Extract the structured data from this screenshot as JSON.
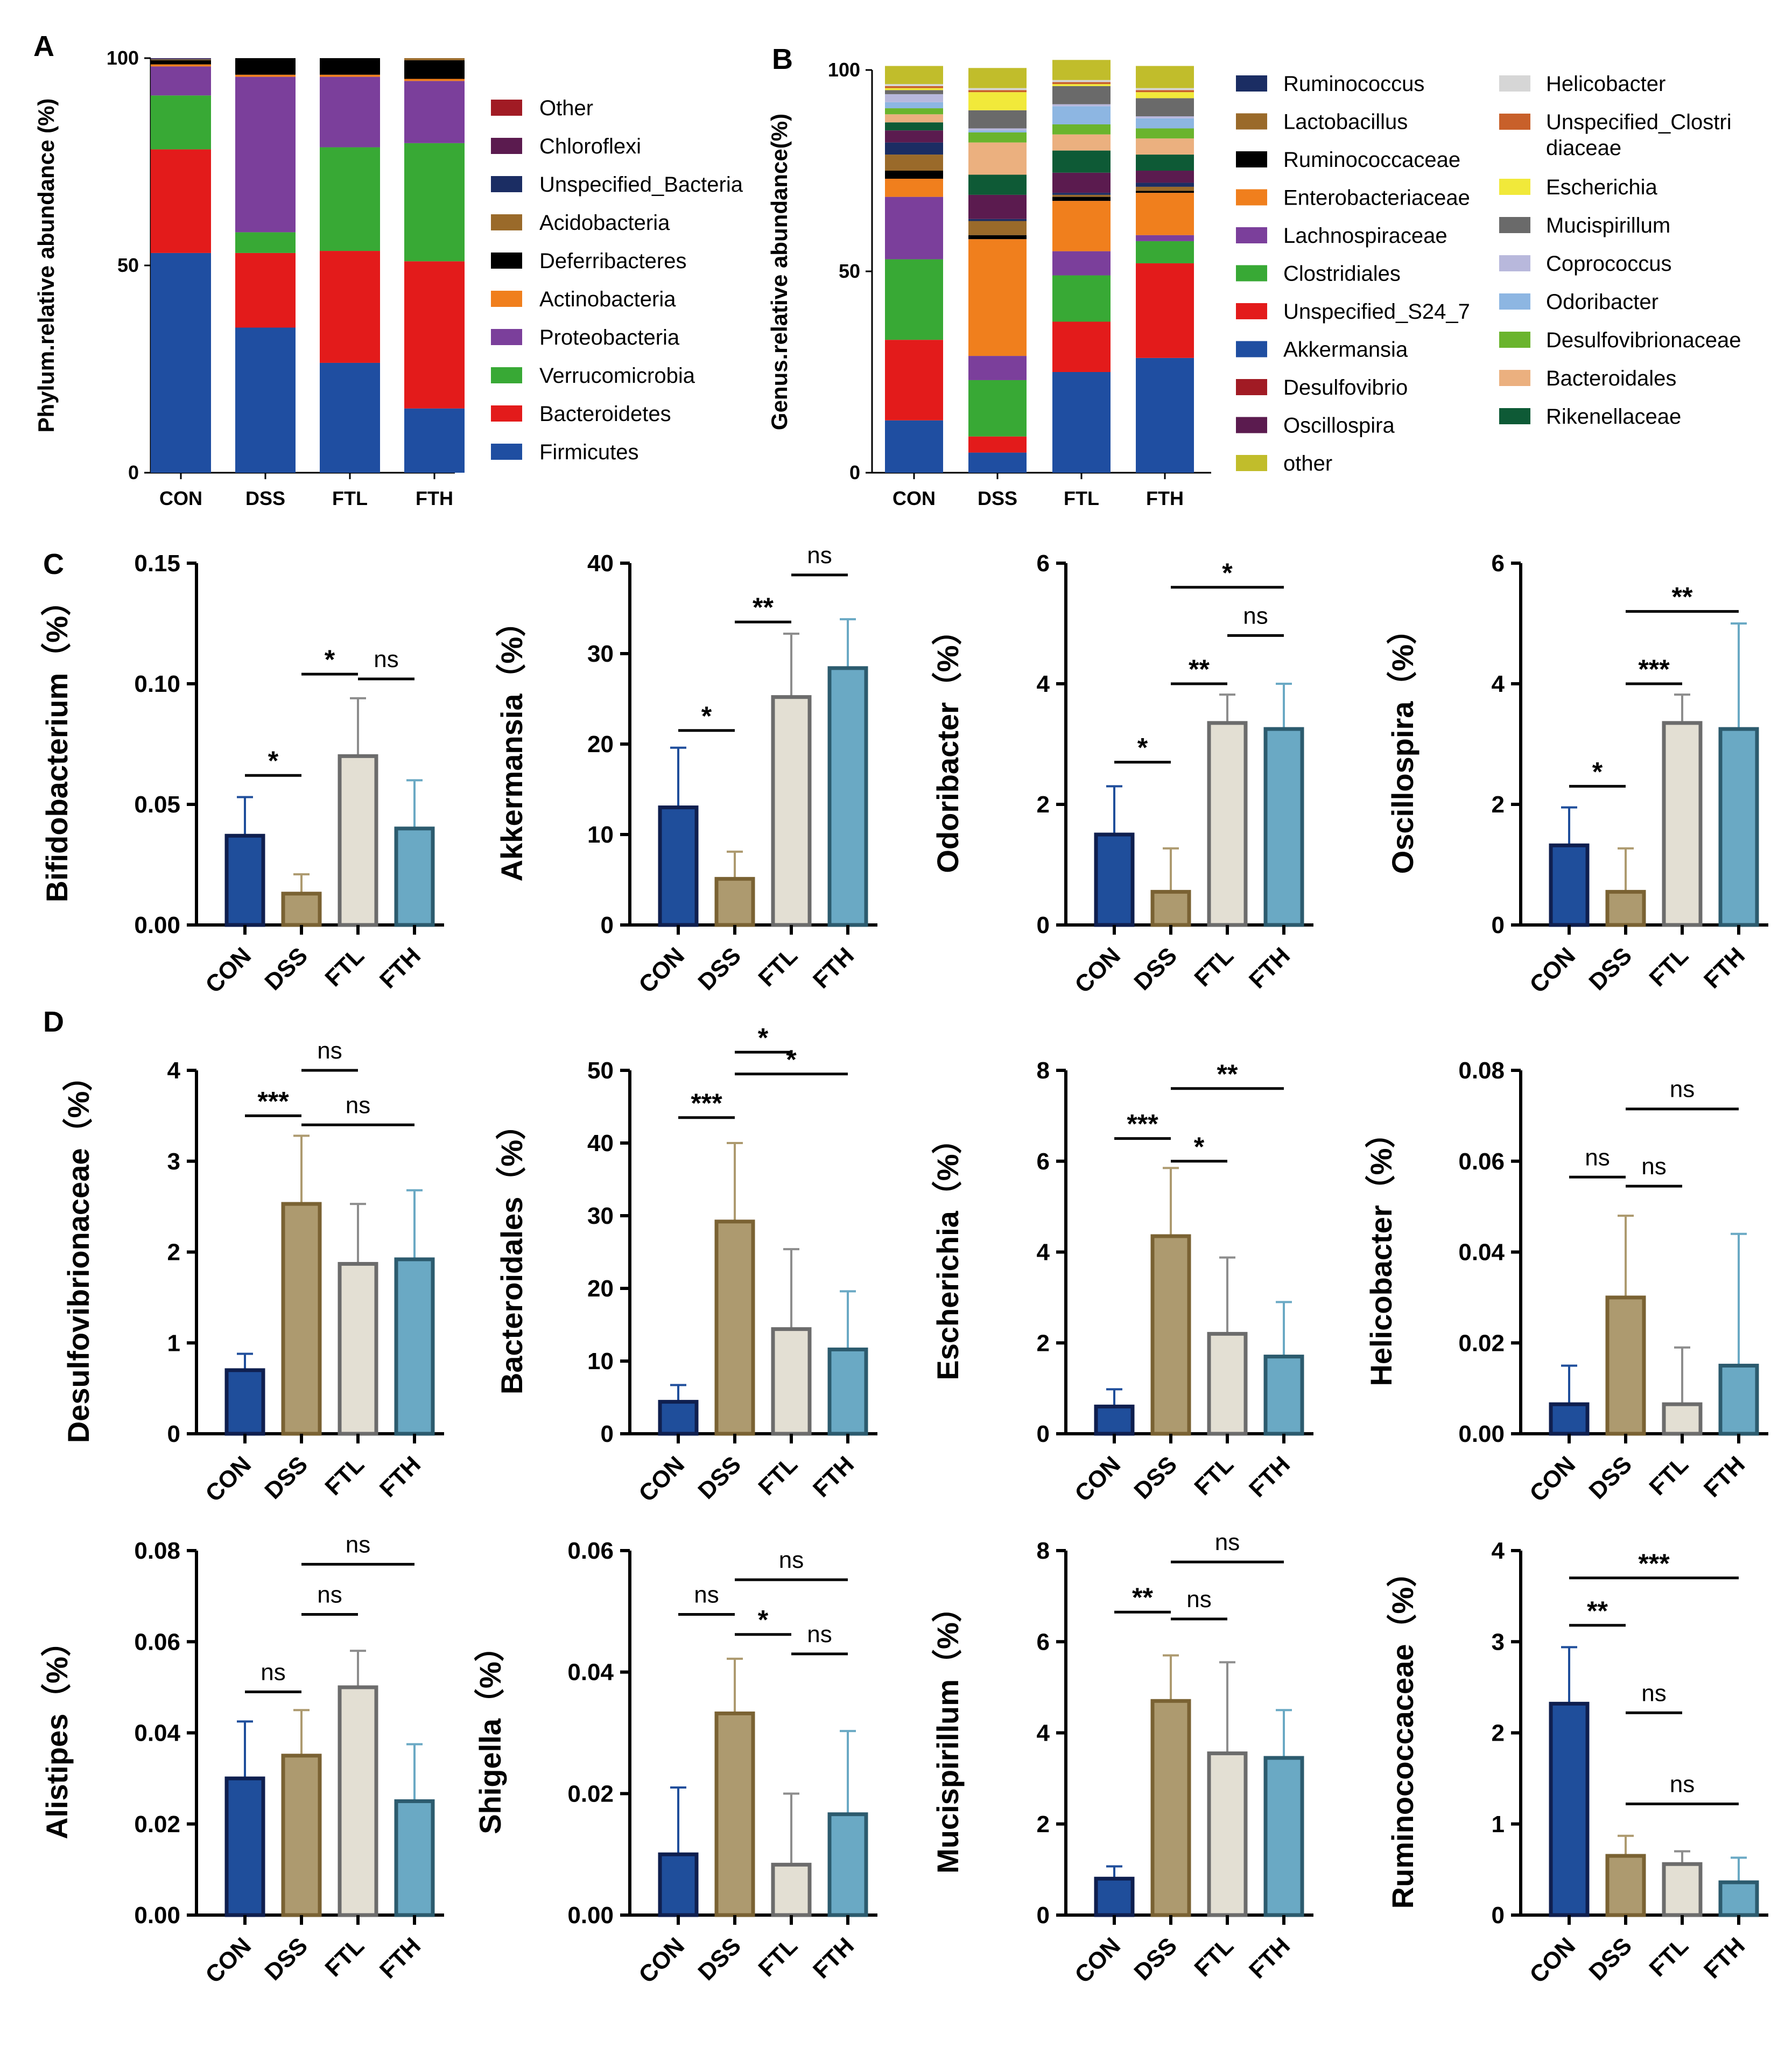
{
  "panel_labels": {
    "A": "A",
    "B": "B",
    "C": "C",
    "D": "D"
  },
  "chart_data": [
    {
      "id": "A",
      "type": "stacked_bar",
      "ylabel": "Phylum.relative abundance (%)",
      "ylim": [
        0,
        100
      ],
      "yticks": [
        "0",
        "50",
        "100"
      ],
      "categories": [
        "CON",
        "DSS",
        "FTL",
        "FTH"
      ],
      "series": [
        {
          "name": "Firmicutes",
          "color": "#1f4ea1",
          "values": [
            53,
            35,
            26.5,
            15.5
          ]
        },
        {
          "name": "Bacteroidetes",
          "color": "#e31b1b",
          "values": [
            25,
            18,
            27,
            35.5
          ]
        },
        {
          "name": "Verrucomicrobia",
          "color": "#38a935",
          "values": [
            13,
            5,
            25,
            28.5
          ]
        },
        {
          "name": "Proteobacteria",
          "color": "#7b3f9b",
          "values": [
            7,
            37.5,
            17,
            15
          ]
        },
        {
          "name": "Actinobacteria",
          "color": "#f07f1d",
          "values": [
            0.5,
            0.5,
            0.5,
            0.5
          ]
        },
        {
          "name": "Deferribacteres",
          "color": "#000000",
          "values": [
            1,
            4,
            4,
            4.5
          ]
        },
        {
          "name": "Acidobacteria",
          "color": "#9a6a2a",
          "values": [
            0.2,
            0,
            0,
            0.5
          ]
        },
        {
          "name": "Unspecified_Bacteria",
          "color": "#1b2d63",
          "values": [
            0.2,
            0,
            0,
            0
          ]
        },
        {
          "name": "Chloroflexi",
          "color": "#5b1b4f",
          "values": [
            0.1,
            0,
            0,
            0
          ]
        },
        {
          "name": "Other",
          "color": "#a11b24",
          "values": [
            0,
            0,
            0,
            0
          ]
        }
      ],
      "legend": [
        "Other",
        "Chloroflexi",
        "Unspecified_Bacteria",
        "Acidobacteria",
        "Deferribacteres",
        "Actinobacteria",
        "Proteobacteria",
        "Verrucomicrobia",
        "Bacteroidetes",
        "Firmicutes"
      ]
    },
    {
      "id": "B",
      "type": "stacked_bar",
      "ylabel": "Genus.relative  abundance(%)",
      "ylim": [
        0,
        100
      ],
      "yticks": [
        "0",
        "50",
        "100"
      ],
      "categories": [
        "CON",
        "DSS",
        "FTL",
        "FTH"
      ],
      "series": [
        {
          "name": "Akkermansia",
          "color": "#1f4ea1",
          "values": [
            13,
            5,
            25,
            28.5
          ]
        },
        {
          "name": "Desulfovibrio",
          "color": "#a11b24",
          "values": [
            0,
            0,
            0,
            0
          ]
        },
        {
          "name": "Unspecified_S24_7",
          "color": "#e31b1b",
          "values": [
            20,
            4,
            12.5,
            23.5
          ]
        },
        {
          "name": "Clostridiales",
          "color": "#38a935",
          "values": [
            20,
            14,
            11.5,
            5.5
          ]
        },
        {
          "name": "Lachnospiraceae",
          "color": "#7b3f9b",
          "values": [
            15.5,
            6,
            6,
            1.5
          ]
        },
        {
          "name": "Enterobacteriaceae",
          "color": "#f07f1d",
          "values": [
            4.5,
            29,
            12.5,
            10.5
          ]
        },
        {
          "name": "Ruminococcaceae",
          "color": "#000000",
          "values": [
            2,
            1,
            1,
            0.5
          ]
        },
        {
          "name": "Lactobacillus",
          "color": "#9a6a2a",
          "values": [
            4,
            3.5,
            0.5,
            1
          ]
        },
        {
          "name": "Ruminococcus",
          "color": "#1b2d63",
          "values": [
            3,
            0.5,
            0.5,
            1
          ]
        },
        {
          "name": "Oscillospira",
          "color": "#5b1b4f",
          "values": [
            3,
            6,
            5,
            3
          ]
        },
        {
          "name": "Rikenellaceae",
          "color": "#0e5a36",
          "values": [
            2,
            5,
            5.5,
            4
          ]
        },
        {
          "name": "Bacteroidales",
          "color": "#ebb07f",
          "values": [
            2,
            8,
            4,
            4
          ]
        },
        {
          "name": "Desulfovibrionaceae",
          "color": "#6ab42d",
          "values": [
            1.5,
            2.5,
            2.5,
            2.5
          ]
        },
        {
          "name": "Odoribacter",
          "color": "#8db6e2",
          "values": [
            1.5,
            0.5,
            4.5,
            2.5
          ]
        },
        {
          "name": "Coprococcus",
          "color": "#b8b8dc",
          "values": [
            2,
            0.5,
            0.5,
            0.5
          ]
        },
        {
          "name": "Mucispirillum",
          "color": "#6a6a6a",
          "values": [
            1,
            4.5,
            4.5,
            4.5
          ]
        },
        {
          "name": "Escherichia",
          "color": "#f1e93a",
          "values": [
            0.5,
            4.5,
            0.5,
            1.5
          ]
        },
        {
          "name": "Unspecified_Clostridiaceae",
          "color": "#c8602a",
          "values": [
            0.5,
            0.5,
            0.5,
            0.5
          ]
        },
        {
          "name": "Helicobacter",
          "color": "#d6d6d6",
          "values": [
            0.5,
            0.5,
            0.5,
            0.5
          ]
        },
        {
          "name": "other",
          "color": "#c1bd2b",
          "values": [
            4.5,
            5,
            5,
            5.5
          ]
        }
      ],
      "legend_left": [
        "Ruminococcus",
        "Lactobacillus",
        "Ruminococcaceae",
        "Enterobacteriaceae",
        "Lachnospiraceae",
        "Clostridiales",
        "Unspecified_S24_7",
        "Akkermansia",
        "Desulfovibrio",
        "Oscillospira",
        "other"
      ],
      "legend_right": [
        "Helicobacter",
        "Unspecified_Clostri diaceae",
        "Escherichia",
        "Mucispirillum",
        "Coprococcus",
        "Odoribacter",
        "Desulfovibrionaceae",
        "Bacteroidales",
        "Rikenellaceae"
      ],
      "legend_right_lines": [
        [
          "Helicobacter"
        ],
        [
          "Unspecified_Clostri",
          "diaceae"
        ],
        [
          "Escherichia"
        ],
        [
          "Mucispirillum"
        ],
        [
          "Coprococcus"
        ],
        [
          "Odoribacter"
        ],
        [
          "Desulfovibrionaceae"
        ],
        [
          "Bacteroidales"
        ],
        [
          "Rikenellaceae"
        ]
      ]
    },
    {
      "id": "C1",
      "type": "bar",
      "ylabel": "Bifidobacterium（%）",
      "categories": [
        "CON",
        "DSS",
        "FTL",
        "FTH"
      ],
      "values": [
        0.037,
        0.013,
        0.07,
        0.04
      ],
      "errors": [
        0.016,
        0.008,
        0.024,
        0.02
      ],
      "ylim": [
        0,
        0.15
      ],
      "yticks": [
        "0.00",
        "0.05",
        "0.10",
        "0.15"
      ],
      "sig": [
        {
          "from": 0,
          "to": 1,
          "label": "*",
          "level": 0.062
        },
        {
          "from": 1,
          "to": 2,
          "label": "*",
          "level": 0.104
        },
        {
          "from": 2,
          "to": 3,
          "label": "ns",
          "level": 0.102
        }
      ]
    },
    {
      "id": "C2",
      "type": "bar",
      "ylabel": "Akkermansia（%）",
      "categories": [
        "CON",
        "DSS",
        "FTL",
        "FTH"
      ],
      "values": [
        13,
        5.1,
        25.2,
        28.4
      ],
      "errors": [
        6.6,
        3,
        7,
        5.4
      ],
      "ylim": [
        0,
        40
      ],
      "yticks": [
        "0",
        "10",
        "20",
        "30",
        "40"
      ],
      "sig": [
        {
          "from": 0,
          "to": 1,
          "label": "*",
          "level": 21.5
        },
        {
          "from": 1,
          "to": 2,
          "label": "**",
          "level": 33.5
        },
        {
          "from": 2,
          "to": 3,
          "label": "ns",
          "level": 38.7
        }
      ]
    },
    {
      "id": "C3",
      "type": "bar",
      "ylabel": "Odoribacter（%）",
      "categories": [
        "CON",
        "DSS",
        "FTL",
        "FTH"
      ],
      "values": [
        1.5,
        0.55,
        3.35,
        3.25
      ],
      "errors": [
        0.8,
        0.72,
        0.47,
        0.75
      ],
      "ylim": [
        0,
        6
      ],
      "yticks": [
        "0",
        "2",
        "4",
        "6"
      ],
      "sig": [
        {
          "from": 0,
          "to": 1,
          "label": "*",
          "level": 2.7
        },
        {
          "from": 1,
          "to": 2,
          "label": "**",
          "level": 4.0
        },
        {
          "from": 2,
          "to": 3,
          "label": "ns",
          "level": 4.8
        },
        {
          "from": 1,
          "to": 3,
          "label": "*",
          "level": 5.6
        }
      ]
    },
    {
      "id": "C4",
      "type": "bar",
      "ylabel": "Oscillospira（%）",
      "categories": [
        "CON",
        "DSS",
        "FTL",
        "FTH"
      ],
      "values": [
        1.32,
        0.55,
        3.35,
        3.25
      ],
      "errors": [
        0.63,
        0.72,
        0.47,
        1.75
      ],
      "ylim": [
        0,
        6
      ],
      "yticks": [
        "0",
        "2",
        "4",
        "6"
      ],
      "sig": [
        {
          "from": 0,
          "to": 1,
          "label": "*",
          "level": 2.3
        },
        {
          "from": 1,
          "to": 2,
          "label": "***",
          "level": 4.0
        },
        {
          "from": 1,
          "to": 3,
          "label": "**",
          "level": 5.2
        }
      ]
    },
    {
      "id": "D1",
      "type": "bar",
      "ylabel": "Desulfovibrionaceae（%）",
      "categories": [
        "CON",
        "DSS",
        "FTL",
        "FTH"
      ],
      "values": [
        0.7,
        2.53,
        1.87,
        1.92
      ],
      "errors": [
        0.18,
        0.75,
        0.66,
        0.76
      ],
      "ylim": [
        0,
        4
      ],
      "yticks": [
        "0",
        "1",
        "2",
        "3",
        "4"
      ],
      "sig": [
        {
          "from": 0,
          "to": 1,
          "label": "***",
          "level": 3.5
        },
        {
          "from": 1,
          "to": 2,
          "label": "ns",
          "level": 4.0
        },
        {
          "from": 1,
          "to": 3,
          "label": "ns",
          "level": 3.4
        }
      ]
    },
    {
      "id": "D2",
      "type": "bar",
      "ylabel": "Bacteroidales（%）",
      "categories": [
        "CON",
        "DSS",
        "FTL",
        "FTH"
      ],
      "values": [
        4.4,
        29.2,
        14.4,
        11.6
      ],
      "errors": [
        2.3,
        10.8,
        11,
        8
      ],
      "ylim": [
        0,
        50
      ],
      "yticks": [
        "0",
        "10",
        "20",
        "30",
        "40",
        "50"
      ],
      "sig": [
        {
          "from": 0,
          "to": 1,
          "label": "***",
          "level": 43.5
        },
        {
          "from": 1,
          "to": 2,
          "label": "*",
          "level": 52.5
        },
        {
          "from": 1,
          "to": 3,
          "label": "*",
          "level": 49.5
        }
      ]
    },
    {
      "id": "D3",
      "type": "bar",
      "ylabel": "Escherichia（%）",
      "categories": [
        "CON",
        "DSS",
        "FTL",
        "FTH"
      ],
      "values": [
        0.6,
        4.35,
        2.2,
        1.7
      ],
      "errors": [
        0.38,
        1.5,
        1.68,
        1.2
      ],
      "ylim": [
        0,
        8
      ],
      "yticks": [
        "0",
        "2",
        "4",
        "6",
        "8"
      ],
      "sig": [
        {
          "from": 0,
          "to": 1,
          "label": "***",
          "level": 6.5
        },
        {
          "from": 1,
          "to": 2,
          "label": "*",
          "level": 6.0
        },
        {
          "from": 1,
          "to": 3,
          "label": "**",
          "level": 7.6
        }
      ]
    },
    {
      "id": "D4",
      "type": "bar",
      "ylabel": "Helicobacter（%）",
      "categories": [
        "CON",
        "DSS",
        "FTL",
        "FTH"
      ],
      "values": [
        0.0065,
        0.03,
        0.0065,
        0.015
      ],
      "errors": [
        0.0085,
        0.018,
        0.0125,
        0.029
      ],
      "ylim": [
        0,
        0.08
      ],
      "yticks": [
        "0.00",
        "0.02",
        "0.04",
        "0.06",
        "0.08"
      ],
      "sig": [
        {
          "from": 0,
          "to": 1,
          "label": "ns",
          "level": 0.0565
        },
        {
          "from": 1,
          "to": 2,
          "label": "ns",
          "level": 0.0545
        },
        {
          "from": 1,
          "to": 3,
          "label": "ns",
          "level": 0.0715
        }
      ]
    },
    {
      "id": "D5",
      "type": "bar",
      "ylabel": "Alistipes（%）",
      "categories": [
        "CON",
        "DSS",
        "FTL",
        "FTH"
      ],
      "values": [
        0.03,
        0.035,
        0.05,
        0.025
      ],
      "errors": [
        0.0125,
        0.01,
        0.008,
        0.0125
      ],
      "ylim": [
        0,
        0.08
      ],
      "yticks": [
        "0.00",
        "0.02",
        "0.04",
        "0.06",
        "0.08"
      ],
      "sig": [
        {
          "from": 0,
          "to": 1,
          "label": "ns",
          "level": 0.049
        },
        {
          "from": 1,
          "to": 2,
          "label": "ns",
          "level": 0.066
        },
        {
          "from": 1,
          "to": 3,
          "label": "ns",
          "level": 0.077
        }
      ]
    },
    {
      "id": "D6",
      "type": "bar",
      "ylabel": "Shigella（%）",
      "categories": [
        "CON",
        "DSS",
        "FTL",
        "FTH"
      ],
      "values": [
        0.01,
        0.0332,
        0.0083,
        0.0166
      ],
      "errors": [
        0.011,
        0.009,
        0.0117,
        0.0137
      ],
      "ylim": [
        0,
        0.06
      ],
      "yticks": [
        "0.00",
        "0.02",
        "0.04",
        "0.06"
      ],
      "sig": [
        {
          "from": 0,
          "to": 1,
          "label": "ns",
          "level": 0.0495
        },
        {
          "from": 1,
          "to": 2,
          "label": "*",
          "level": 0.0462
        },
        {
          "from": 2,
          "to": 3,
          "label": "ns",
          "level": 0.043
        },
        {
          "from": 1,
          "to": 3,
          "label": "ns",
          "level": 0.0552
        }
      ]
    },
    {
      "id": "D7",
      "type": "bar",
      "ylabel": "Mucispirillum（%）",
      "categories": [
        "CON",
        "DSS",
        "FTL",
        "FTH"
      ],
      "values": [
        0.8,
        4.7,
        3.55,
        3.45
      ],
      "errors": [
        0.27,
        1.0,
        2.0,
        1.05
      ],
      "ylim": [
        0,
        8
      ],
      "yticks": [
        "0",
        "2",
        "4",
        "6",
        "8"
      ],
      "sig": [
        {
          "from": 0,
          "to": 1,
          "label": "**",
          "level": 6.65
        },
        {
          "from": 1,
          "to": 2,
          "label": "ns",
          "level": 6.5
        },
        {
          "from": 1,
          "to": 3,
          "label": "ns",
          "level": 7.75
        }
      ]
    },
    {
      "id": "D8",
      "type": "bar",
      "ylabel": "Ruminococcaceae（%）",
      "categories": [
        "CON",
        "DSS",
        "FTL",
        "FTH"
      ],
      "values": [
        2.32,
        0.65,
        0.56,
        0.36
      ],
      "errors": [
        0.62,
        0.22,
        0.14,
        0.27
      ],
      "ylim": [
        0,
        4
      ],
      "yticks": [
        "0",
        "1",
        "2",
        "3",
        "4"
      ],
      "sig": [
        {
          "from": 0,
          "to": 1,
          "label": "**",
          "level": 3.18
        },
        {
          "from": 1,
          "to": 2,
          "label": "ns",
          "level": 2.22
        },
        {
          "from": 1,
          "to": 3,
          "label": "ns",
          "level": 1.22
        },
        {
          "from": 0,
          "to": 3,
          "label": "***",
          "level": 3.7
        }
      ]
    }
  ],
  "bar_style": {
    "fills": [
      "#1f4e9b",
      "#ad9a6f",
      "#e3dfd3",
      "#6aa9c4"
    ],
    "strokes": [
      "#0f1f4f",
      "#7a6233",
      "#6c6c6c",
      "#2c5b6e"
    ],
    "errors": [
      "#1f4e9b",
      "#ad9a6f",
      "#8d8d8d",
      "#6aa9c4"
    ]
  }
}
